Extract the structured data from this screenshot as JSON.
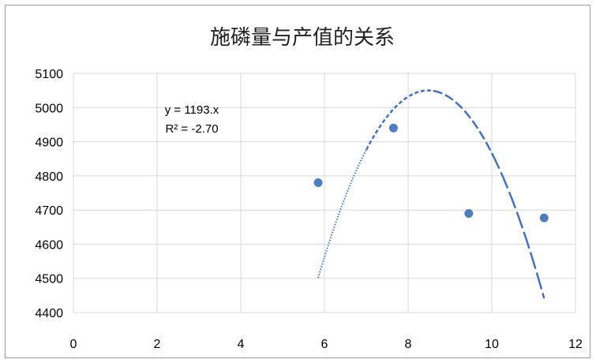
{
  "chart_data": {
    "type": "scatter",
    "title": "施磷量与产值的关系",
    "xlabel": "",
    "ylabel": "",
    "xlim": [
      0,
      12
    ],
    "ylim": [
      4400,
      5100
    ],
    "x_ticks": [
      "0",
      "2",
      "4",
      "6",
      "8",
      "10",
      "12"
    ],
    "y_ticks": [
      "4400",
      "4500",
      "4600",
      "4700",
      "4800",
      "4900",
      "5000",
      "5100"
    ],
    "grid": true,
    "legend": "none",
    "colors": {
      "marker": "#4F7EC0",
      "trendline": "#4472C4",
      "grid": "#d9d9d9"
    },
    "points": [
      {
        "x": 5.85,
        "y": 4780
      },
      {
        "x": 7.65,
        "y": 4940
      },
      {
        "x": 9.45,
        "y": 4690
      },
      {
        "x": 11.25,
        "y": 4677
      }
    ],
    "trendline": {
      "type": "polynomial",
      "x_start": 5.85,
      "x_end": 11.25,
      "vertex_x": 8.48,
      "vertex_y": 5050,
      "coef_a": -79.3,
      "equation": "y = 1193.x",
      "r_squared": "R² = -2.70"
    }
  }
}
